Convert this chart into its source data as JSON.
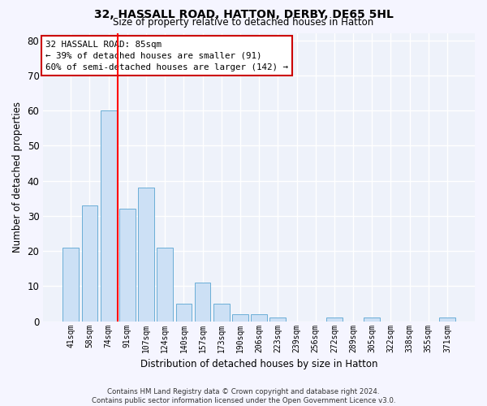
{
  "title": "32, HASSALL ROAD, HATTON, DERBY, DE65 5HL",
  "subtitle": "Size of property relative to detached houses in Hatton",
  "xlabel": "Distribution of detached houses by size in Hatton",
  "ylabel": "Number of detached properties",
  "categories": [
    "41sqm",
    "58sqm",
    "74sqm",
    "91sqm",
    "107sqm",
    "124sqm",
    "140sqm",
    "157sqm",
    "173sqm",
    "190sqm",
    "206sqm",
    "223sqm",
    "239sqm",
    "256sqm",
    "272sqm",
    "289sqm",
    "305sqm",
    "322sqm",
    "338sqm",
    "355sqm",
    "371sqm"
  ],
  "values": [
    21,
    33,
    60,
    32,
    38,
    21,
    5,
    11,
    5,
    2,
    2,
    1,
    0,
    0,
    1,
    0,
    1,
    0,
    0,
    0,
    1
  ],
  "bar_color": "#cce0f5",
  "bar_edge_color": "#6baed6",
  "background_color": "#eef2fa",
  "grid_color": "#ffffff",
  "red_line_x": 2.5,
  "annotation_text": "32 HASSALL ROAD: 85sqm\n← 39% of detached houses are smaller (91)\n60% of semi-detached houses are larger (142) →",
  "annotation_box_color": "#ffffff",
  "annotation_box_edge_color": "#cc0000",
  "ylim": [
    0,
    82
  ],
  "yticks": [
    0,
    10,
    20,
    30,
    40,
    50,
    60,
    70,
    80
  ],
  "footer_line1": "Contains HM Land Registry data © Crown copyright and database right 2024.",
  "footer_line2": "Contains public sector information licensed under the Open Government Licence v3.0."
}
